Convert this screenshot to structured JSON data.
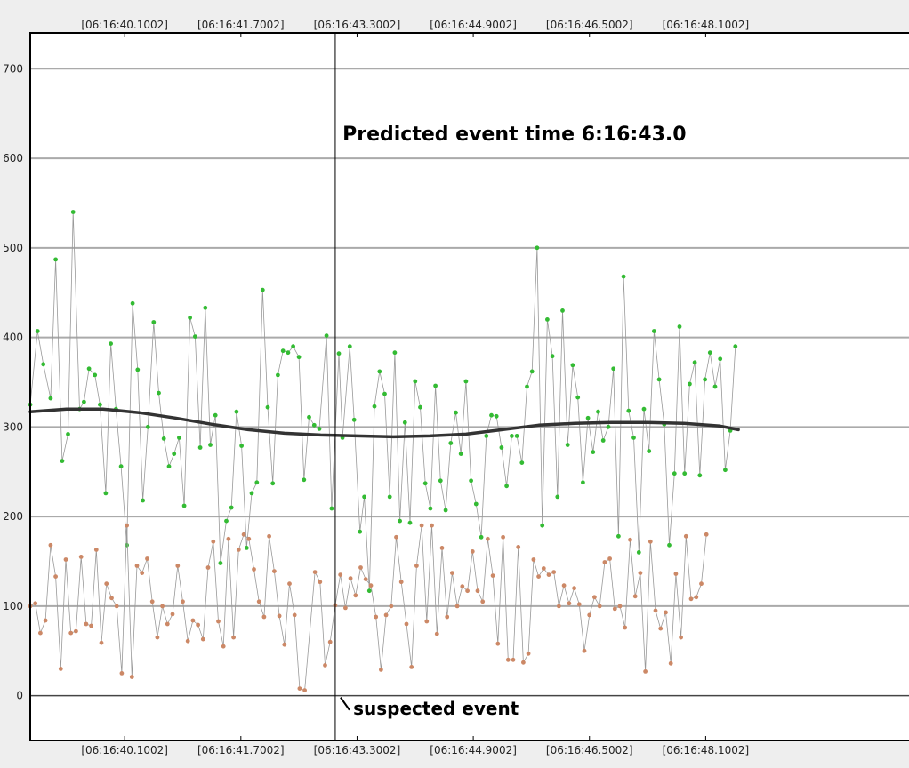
{
  "chart_data": {
    "type": "scatter",
    "xlabel": "",
    "ylabel": "",
    "ylim": [
      -50,
      740
    ],
    "xlim": [
      38.8,
      50.9
    ],
    "yticks": [
      0,
      100,
      200,
      300,
      400,
      500,
      600,
      700
    ],
    "xticks": [
      40.1002,
      41.7002,
      43.3002,
      44.9002,
      46.5002,
      48.1002
    ],
    "xtick_labels": [
      "[06:16:40.1002]",
      "[06:16:41.7002]",
      "[06:16:43.3002]",
      "[06:16:44.9002]",
      "[06:16:46.5002]",
      "[06:16:48.1002]"
    ],
    "grid": true,
    "marker_line_x": 43.0,
    "annotations": [
      {
        "text": "Predicted event time 6:16:43.0",
        "x": 43.1,
        "y": 620
      },
      {
        "text": "suspected event",
        "x": 43.1,
        "y": -20
      }
    ],
    "series": [
      {
        "color": "#33bb33",
        "line_color": "#999999",
        "points": [
          [
            38.8,
            325
          ],
          [
            38.9,
            407
          ],
          [
            38.98,
            370
          ],
          [
            39.08,
            332
          ],
          [
            39.15,
            487
          ],
          [
            39.24,
            262
          ],
          [
            39.32,
            292
          ],
          [
            39.39,
            540
          ],
          [
            39.48,
            320
          ],
          [
            39.54,
            328
          ],
          [
            39.61,
            365
          ],
          [
            39.69,
            358
          ],
          [
            39.76,
            325
          ],
          [
            39.84,
            226
          ],
          [
            39.91,
            393
          ],
          [
            39.98,
            320
          ],
          [
            40.05,
            256
          ],
          [
            40.13,
            168
          ],
          [
            40.21,
            438
          ],
          [
            40.28,
            364
          ],
          [
            40.35,
            218
          ],
          [
            40.42,
            300
          ],
          [
            40.5,
            417
          ],
          [
            40.57,
            338
          ],
          [
            40.64,
            287
          ],
          [
            40.71,
            256
          ],
          [
            40.78,
            270
          ],
          [
            40.85,
            288
          ],
          [
            40.92,
            212
          ],
          [
            41.0,
            422
          ],
          [
            41.07,
            401
          ],
          [
            41.14,
            277
          ],
          [
            41.21,
            433
          ],
          [
            41.28,
            280
          ],
          [
            41.35,
            313
          ],
          [
            41.42,
            148
          ],
          [
            41.5,
            195
          ],
          [
            41.57,
            210
          ],
          [
            41.64,
            317
          ],
          [
            41.71,
            279
          ],
          [
            41.78,
            165
          ],
          [
            41.85,
            226
          ],
          [
            41.92,
            238
          ],
          [
            42.0,
            453
          ],
          [
            42.07,
            322
          ],
          [
            42.14,
            237
          ],
          [
            42.21,
            358
          ],
          [
            42.28,
            385
          ],
          [
            42.35,
            383
          ],
          [
            42.42,
            390
          ],
          [
            42.5,
            378
          ],
          [
            42.57,
            241
          ],
          [
            42.64,
            311
          ],
          [
            42.71,
            302
          ],
          [
            42.78,
            298
          ],
          [
            42.88,
            402
          ],
          [
            42.95,
            209
          ],
          [
            43.05,
            382
          ],
          [
            43.1,
            288
          ],
          [
            43.2,
            390
          ],
          [
            43.26,
            308
          ],
          [
            43.34,
            183
          ],
          [
            43.4,
            222
          ],
          [
            43.47,
            117
          ],
          [
            43.54,
            323
          ],
          [
            43.61,
            362
          ],
          [
            43.68,
            337
          ],
          [
            43.75,
            222
          ],
          [
            43.82,
            383
          ],
          [
            43.89,
            195
          ],
          [
            43.96,
            305
          ],
          [
            44.03,
            193
          ],
          [
            44.1,
            351
          ],
          [
            44.17,
            322
          ],
          [
            44.24,
            237
          ],
          [
            44.31,
            209
          ],
          [
            44.38,
            346
          ],
          [
            44.45,
            240
          ],
          [
            44.52,
            207
          ],
          [
            44.59,
            282
          ],
          [
            44.66,
            316
          ],
          [
            44.73,
            270
          ],
          [
            44.8,
            351
          ],
          [
            44.87,
            240
          ],
          [
            44.94,
            214
          ],
          [
            45.01,
            177
          ],
          [
            45.08,
            290
          ],
          [
            45.15,
            313
          ],
          [
            45.22,
            312
          ],
          [
            45.29,
            277
          ],
          [
            45.36,
            234
          ],
          [
            45.43,
            290
          ],
          [
            45.5,
            290
          ],
          [
            45.57,
            260
          ],
          [
            45.64,
            345
          ],
          [
            45.71,
            362
          ],
          [
            45.78,
            500
          ],
          [
            45.85,
            190
          ],
          [
            45.92,
            420
          ],
          [
            45.99,
            379
          ],
          [
            46.06,
            222
          ],
          [
            46.13,
            430
          ],
          [
            46.2,
            280
          ],
          [
            46.27,
            369
          ],
          [
            46.34,
            333
          ],
          [
            46.41,
            238
          ],
          [
            46.48,
            310
          ],
          [
            46.55,
            272
          ],
          [
            46.62,
            317
          ],
          [
            46.69,
            285
          ],
          [
            46.76,
            300
          ],
          [
            46.83,
            365
          ],
          [
            46.9,
            178
          ],
          [
            46.97,
            468
          ],
          [
            47.04,
            318
          ],
          [
            47.11,
            288
          ],
          [
            47.18,
            160
          ],
          [
            47.25,
            320
          ],
          [
            47.32,
            273
          ],
          [
            47.39,
            407
          ],
          [
            47.46,
            353
          ],
          [
            47.53,
            303
          ],
          [
            47.6,
            168
          ],
          [
            47.67,
            248
          ],
          [
            47.74,
            412
          ],
          [
            47.81,
            248
          ],
          [
            47.88,
            348
          ],
          [
            47.95,
            372
          ],
          [
            48.02,
            246
          ],
          [
            48.09,
            353
          ],
          [
            48.16,
            383
          ],
          [
            48.23,
            345
          ],
          [
            48.3,
            376
          ],
          [
            48.37,
            252
          ],
          [
            48.44,
            296
          ],
          [
            48.51,
            390
          ]
        ]
      },
      {
        "color": "#cc8866",
        "line_color": "#999999",
        "points": [
          [
            38.8,
            100
          ],
          [
            38.87,
            103
          ],
          [
            38.94,
            70
          ],
          [
            39.01,
            84
          ],
          [
            39.08,
            168
          ],
          [
            39.15,
            133
          ],
          [
            39.22,
            30
          ],
          [
            39.29,
            152
          ],
          [
            39.36,
            70
          ],
          [
            39.43,
            72
          ],
          [
            39.5,
            155
          ],
          [
            39.57,
            80
          ],
          [
            39.64,
            78
          ],
          [
            39.71,
            163
          ],
          [
            39.78,
            59
          ],
          [
            39.85,
            125
          ],
          [
            39.92,
            109
          ],
          [
            39.99,
            100
          ],
          [
            40.06,
            25
          ],
          [
            40.13,
            190
          ],
          [
            40.2,
            21
          ],
          [
            40.27,
            145
          ],
          [
            40.34,
            137
          ],
          [
            40.41,
            153
          ],
          [
            40.48,
            105
          ],
          [
            40.55,
            65
          ],
          [
            40.62,
            100
          ],
          [
            40.69,
            80
          ],
          [
            40.76,
            91
          ],
          [
            40.83,
            145
          ],
          [
            40.9,
            105
          ],
          [
            40.97,
            61
          ],
          [
            41.04,
            84
          ],
          [
            41.11,
            79
          ],
          [
            41.18,
            63
          ],
          [
            41.25,
            143
          ],
          [
            41.32,
            172
          ],
          [
            41.39,
            83
          ],
          [
            41.46,
            55
          ],
          [
            41.53,
            175
          ],
          [
            41.6,
            65
          ],
          [
            41.67,
            163
          ],
          [
            41.74,
            180
          ],
          [
            41.81,
            175
          ],
          [
            41.88,
            141
          ],
          [
            41.95,
            105
          ],
          [
            42.02,
            88
          ],
          [
            42.09,
            178
          ],
          [
            42.16,
            139
          ],
          [
            42.23,
            89
          ],
          [
            42.3,
            57
          ],
          [
            42.37,
            125
          ],
          [
            42.44,
            90
          ],
          [
            42.51,
            8
          ],
          [
            42.58,
            6
          ],
          [
            42.72,
            138
          ],
          [
            42.79,
            127
          ],
          [
            42.86,
            34
          ],
          [
            42.93,
            60
          ],
          [
            43.0,
            101
          ],
          [
            43.07,
            135
          ],
          [
            43.14,
            98
          ],
          [
            43.21,
            131
          ],
          [
            43.28,
            112
          ],
          [
            43.35,
            143
          ],
          [
            43.42,
            130
          ],
          [
            43.49,
            123
          ],
          [
            43.56,
            88
          ],
          [
            43.63,
            29
          ],
          [
            43.7,
            90
          ],
          [
            43.77,
            100
          ],
          [
            43.84,
            177
          ],
          [
            43.91,
            127
          ],
          [
            43.98,
            80
          ],
          [
            44.05,
            32
          ],
          [
            44.12,
            145
          ],
          [
            44.19,
            190
          ],
          [
            44.26,
            83
          ],
          [
            44.33,
            190
          ],
          [
            44.4,
            69
          ],
          [
            44.47,
            165
          ],
          [
            44.54,
            88
          ],
          [
            44.61,
            137
          ],
          [
            44.68,
            100
          ],
          [
            44.75,
            122
          ],
          [
            44.82,
            117
          ],
          [
            44.89,
            161
          ],
          [
            44.96,
            117
          ],
          [
            45.03,
            105
          ],
          [
            45.1,
            175
          ],
          [
            45.17,
            134
          ],
          [
            45.24,
            58
          ],
          [
            45.31,
            177
          ],
          [
            45.38,
            40
          ],
          [
            45.45,
            40
          ],
          [
            45.52,
            166
          ],
          [
            45.59,
            37
          ],
          [
            45.66,
            47
          ],
          [
            45.73,
            152
          ],
          [
            45.8,
            133
          ],
          [
            45.87,
            142
          ],
          [
            45.94,
            135
          ],
          [
            46.01,
            138
          ],
          [
            46.08,
            100
          ],
          [
            46.15,
            123
          ],
          [
            46.22,
            103
          ],
          [
            46.29,
            120
          ],
          [
            46.36,
            102
          ],
          [
            46.43,
            50
          ],
          [
            46.5,
            90
          ],
          [
            46.57,
            110
          ],
          [
            46.64,
            100
          ],
          [
            46.71,
            149
          ],
          [
            46.78,
            153
          ],
          [
            46.85,
            97
          ],
          [
            46.92,
            100
          ],
          [
            46.99,
            76
          ],
          [
            47.06,
            174
          ],
          [
            47.13,
            111
          ],
          [
            47.2,
            137
          ],
          [
            47.27,
            27
          ],
          [
            47.34,
            172
          ],
          [
            47.41,
            95
          ],
          [
            47.48,
            75
          ],
          [
            47.55,
            93
          ],
          [
            47.62,
            36
          ],
          [
            47.69,
            136
          ],
          [
            47.76,
            65
          ],
          [
            47.83,
            178
          ],
          [
            47.9,
            108
          ],
          [
            47.97,
            110
          ],
          [
            48.04,
            125
          ],
          [
            48.11,
            180
          ]
        ]
      },
      {
        "color": "#333333",
        "line_width": 3.5,
        "points": [
          [
            38.8,
            317
          ],
          [
            39.3,
            320
          ],
          [
            39.8,
            320
          ],
          [
            40.3,
            316
          ],
          [
            40.8,
            310
          ],
          [
            41.3,
            303
          ],
          [
            41.8,
            297
          ],
          [
            42.3,
            293
          ],
          [
            42.8,
            291
          ],
          [
            43.3,
            290
          ],
          [
            43.8,
            289
          ],
          [
            44.3,
            290
          ],
          [
            44.8,
            292
          ],
          [
            45.3,
            297
          ],
          [
            45.8,
            302
          ],
          [
            46.3,
            304
          ],
          [
            46.8,
            305
          ],
          [
            47.3,
            305
          ],
          [
            47.8,
            304
          ],
          [
            48.3,
            301
          ],
          [
            48.55,
            297
          ]
        ]
      }
    ]
  }
}
